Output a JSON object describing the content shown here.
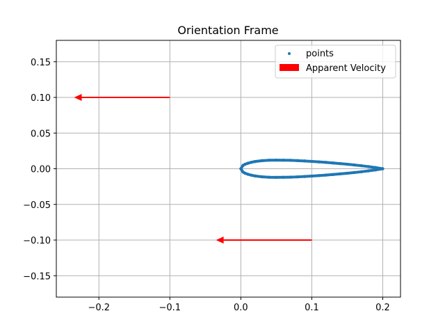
{
  "chart_data": {
    "type": "scatter",
    "title": "Orientation Frame",
    "xlabel": "",
    "ylabel": "",
    "xlim": [
      -0.26,
      0.225
    ],
    "ylim": [
      -0.18,
      0.18
    ],
    "grid": true,
    "legend_position": "top-right",
    "x_ticks": [
      -0.2,
      -0.1,
      0.0,
      0.1,
      0.2
    ],
    "x_tick_labels": [
      "−0.2",
      "−0.1",
      "0.0",
      "0.1",
      "0.2"
    ],
    "y_ticks": [
      0.15,
      0.1,
      0.05,
      0.0,
      -0.05,
      -0.1,
      -0.15
    ],
    "y_tick_labels": [
      "0.15",
      "0.10",
      "0.05",
      "0.00",
      "−0.05",
      "−0.10",
      "−0.15"
    ],
    "series": [
      {
        "name": "points",
        "kind": "scatter",
        "color": "#1f77b4",
        "shape": "airfoil outline, chord 0.0 to 0.2, max half-thickness about 0.012",
        "x": [
          0.0,
          0.003,
          0.006,
          0.01,
          0.015,
          0.02,
          0.03,
          0.04,
          0.05,
          0.06,
          0.07,
          0.08,
          0.09,
          0.1,
          0.11,
          0.12,
          0.13,
          0.14,
          0.15,
          0.16,
          0.17,
          0.18,
          0.19,
          0.2,
          0.19,
          0.18,
          0.17,
          0.16,
          0.15,
          0.14,
          0.13,
          0.12,
          0.11,
          0.1,
          0.09,
          0.08,
          0.07,
          0.06,
          0.05,
          0.04,
          0.03,
          0.02,
          0.015,
          0.01,
          0.006,
          0.003
        ],
        "y": [
          0.0,
          0.0046,
          0.0063,
          0.0077,
          0.0091,
          0.0101,
          0.0113,
          0.0119,
          0.0121,
          0.012,
          0.0118,
          0.0114,
          0.0109,
          0.0103,
          0.0096,
          0.0089,
          0.0081,
          0.0072,
          0.0063,
          0.0053,
          0.0042,
          0.003,
          0.0016,
          0.0,
          -0.0016,
          -0.003,
          -0.0042,
          -0.0053,
          -0.0063,
          -0.0072,
          -0.0081,
          -0.0089,
          -0.0096,
          -0.0103,
          -0.0109,
          -0.0114,
          -0.0118,
          -0.012,
          -0.0121,
          -0.0119,
          -0.0113,
          -0.0101,
          -0.0091,
          -0.0077,
          -0.0063,
          -0.0046
        ]
      },
      {
        "name": "Apparent Velocity",
        "kind": "arrows",
        "color": "#ff0000",
        "arrows": [
          {
            "x": -0.1,
            "y": 0.1,
            "dx": -0.135,
            "dy": 0.0
          },
          {
            "x": 0.1,
            "y": -0.1,
            "dx": -0.135,
            "dy": 0.0
          }
        ]
      }
    ]
  }
}
